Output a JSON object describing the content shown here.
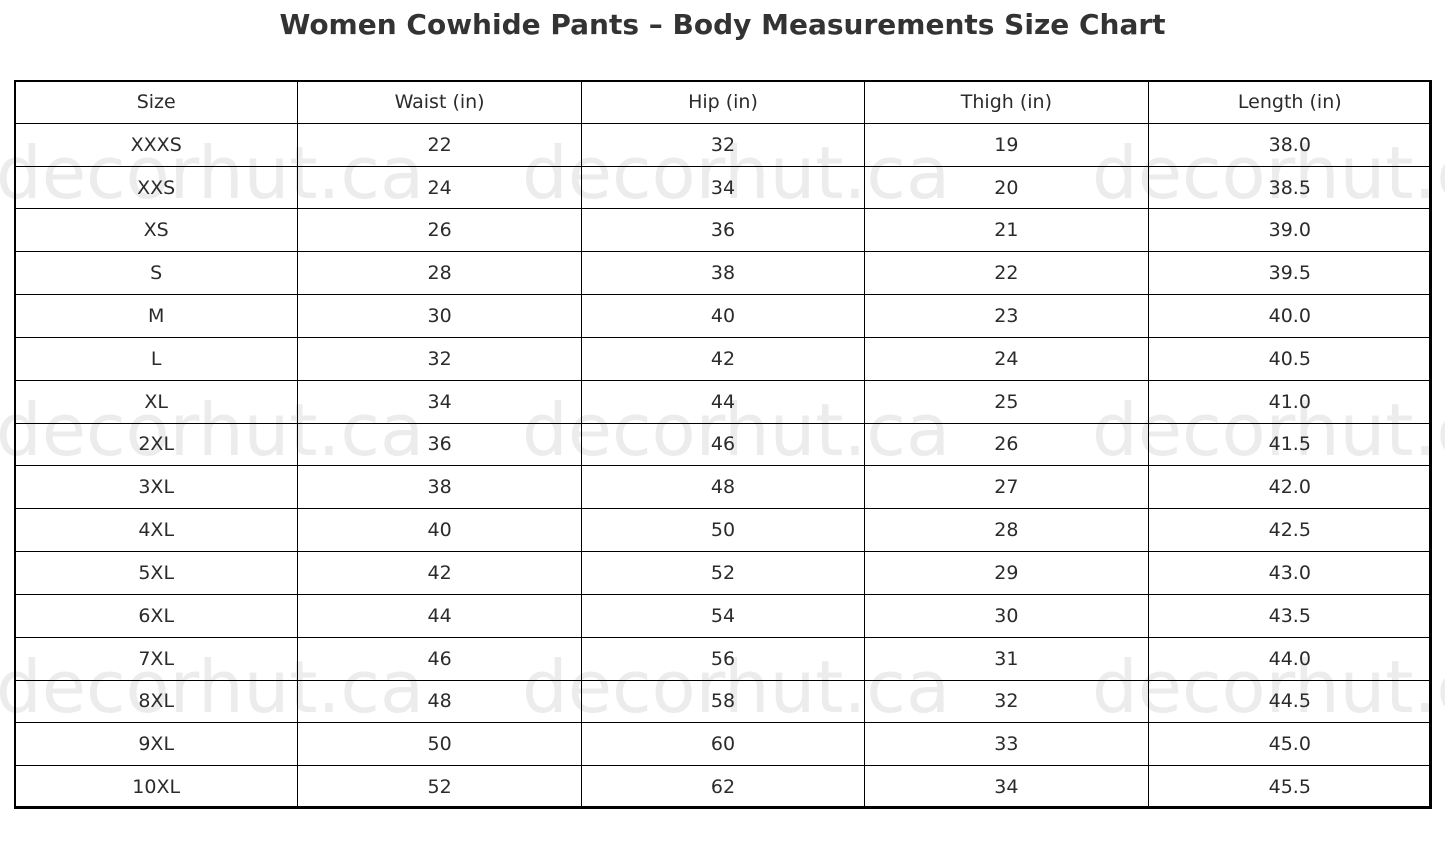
{
  "watermark": "decorhut.ca",
  "chart_data": {
    "type": "table",
    "title": "Women Cowhide Pants – Body Measurements Size Chart",
    "columns": [
      "Size",
      "Waist (in)",
      "Hip (in)",
      "Thigh (in)",
      "Length (in)"
    ],
    "rows": [
      [
        "XXXS",
        "22",
        "32",
        "19",
        "38.0"
      ],
      [
        "XXS",
        "24",
        "34",
        "20",
        "38.5"
      ],
      [
        "XS",
        "26",
        "36",
        "21",
        "39.0"
      ],
      [
        "S",
        "28",
        "38",
        "22",
        "39.5"
      ],
      [
        "M",
        "30",
        "40",
        "23",
        "40.0"
      ],
      [
        "L",
        "32",
        "42",
        "24",
        "40.5"
      ],
      [
        "XL",
        "34",
        "44",
        "25",
        "41.0"
      ],
      [
        "2XL",
        "36",
        "46",
        "26",
        "41.5"
      ],
      [
        "3XL",
        "38",
        "48",
        "27",
        "42.0"
      ],
      [
        "4XL",
        "40",
        "50",
        "28",
        "42.5"
      ],
      [
        "5XL",
        "42",
        "52",
        "29",
        "43.0"
      ],
      [
        "6XL",
        "44",
        "54",
        "30",
        "43.5"
      ],
      [
        "7XL",
        "46",
        "56",
        "31",
        "44.0"
      ],
      [
        "8XL",
        "48",
        "58",
        "32",
        "44.5"
      ],
      [
        "9XL",
        "50",
        "60",
        "33",
        "45.0"
      ],
      [
        "10XL",
        "52",
        "62",
        "34",
        "45.5"
      ]
    ]
  }
}
